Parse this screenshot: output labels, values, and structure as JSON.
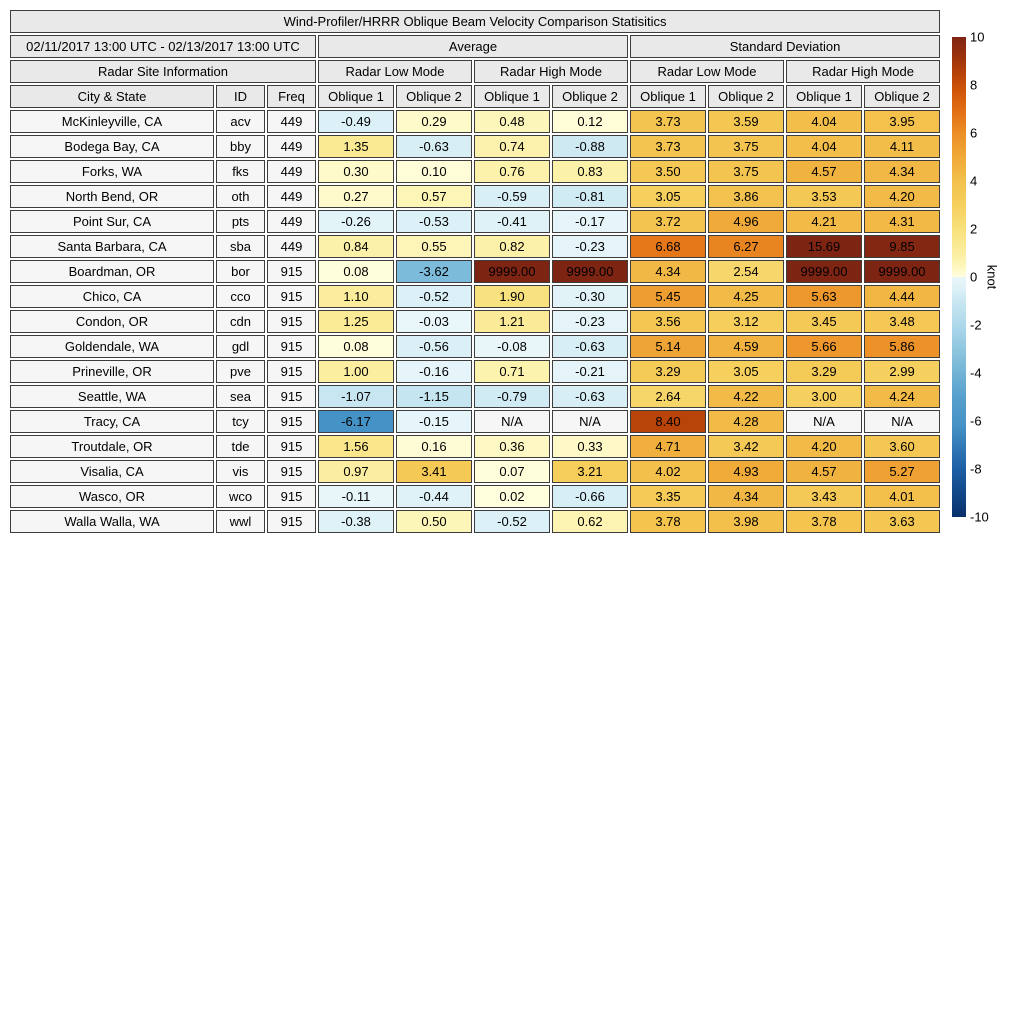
{
  "chart_data": {
    "type": "heatmap_table",
    "title": "Wind-Profiler/HRRR Oblique Beam Velocity Comparison Statisitics",
    "date_range": "02/11/2017 13:00 UTC - 02/13/2017 13:00 UTC",
    "site_info_label": "Radar Site Information",
    "column_groups": [
      "Average",
      "Standard Deviation"
    ],
    "sub_groups": [
      "Radar Low Mode",
      "Radar High Mode"
    ],
    "columns": [
      "City & State",
      "ID",
      "Freq"
    ],
    "value_columns": [
      "Oblique 1",
      "Oblique 2"
    ],
    "na_text": "N/A",
    "rows": [
      {
        "city": "McKinleyville, CA",
        "id": "acv",
        "freq": "449",
        "values": [
          "-0.49",
          "0.29",
          "0.48",
          "0.12",
          "3.73",
          "3.59",
          "4.04",
          "3.95"
        ]
      },
      {
        "city": "Bodega Bay, CA",
        "id": "bby",
        "freq": "449",
        "values": [
          "1.35",
          "-0.63",
          "0.74",
          "-0.88",
          "3.73",
          "3.75",
          "4.04",
          "4.11"
        ]
      },
      {
        "city": "Forks, WA",
        "id": "fks",
        "freq": "449",
        "values": [
          "0.30",
          "0.10",
          "0.76",
          "0.83",
          "3.50",
          "3.75",
          "4.57",
          "4.34"
        ]
      },
      {
        "city": "North Bend, OR",
        "id": "oth",
        "freq": "449",
        "values": [
          "0.27",
          "0.57",
          "-0.59",
          "-0.81",
          "3.05",
          "3.86",
          "3.53",
          "4.20"
        ]
      },
      {
        "city": "Point Sur, CA",
        "id": "pts",
        "freq": "449",
        "values": [
          "-0.26",
          "-0.53",
          "-0.41",
          "-0.17",
          "3.72",
          "4.96",
          "4.21",
          "4.31"
        ]
      },
      {
        "city": "Santa Barbara, CA",
        "id": "sba",
        "freq": "449",
        "values": [
          "0.84",
          "0.55",
          "0.82",
          "-0.23",
          "6.68",
          "6.27",
          "15.69",
          "9.85"
        ]
      },
      {
        "city": "Boardman, OR",
        "id": "bor",
        "freq": "915",
        "values": [
          "0.08",
          "-3.62",
          "9999.00",
          "9999.00",
          "4.34",
          "2.54",
          "9999.00",
          "9999.00"
        ]
      },
      {
        "city": "Chico, CA",
        "id": "cco",
        "freq": "915",
        "values": [
          "1.10",
          "-0.52",
          "1.90",
          "-0.30",
          "5.45",
          "4.25",
          "5.63",
          "4.44"
        ]
      },
      {
        "city": "Condon, OR",
        "id": "cdn",
        "freq": "915",
        "values": [
          "1.25",
          "-0.03",
          "1.21",
          "-0.23",
          "3.56",
          "3.12",
          "3.45",
          "3.48"
        ]
      },
      {
        "city": "Goldendale, WA",
        "id": "gdl",
        "freq": "915",
        "values": [
          "0.08",
          "-0.56",
          "-0.08",
          "-0.63",
          "5.14",
          "4.59",
          "5.66",
          "5.86"
        ]
      },
      {
        "city": "Prineville, OR",
        "id": "pve",
        "freq": "915",
        "values": [
          "1.00",
          "-0.16",
          "0.71",
          "-0.21",
          "3.29",
          "3.05",
          "3.29",
          "2.99"
        ]
      },
      {
        "city": "Seattle, WA",
        "id": "sea",
        "freq": "915",
        "values": [
          "-1.07",
          "-1.15",
          "-0.79",
          "-0.63",
          "2.64",
          "4.22",
          "3.00",
          "4.24"
        ]
      },
      {
        "city": "Tracy, CA",
        "id": "tcy",
        "freq": "915",
        "values": [
          "-6.17",
          "-0.15",
          "N/A",
          "N/A",
          "8.40",
          "4.28",
          "N/A",
          "N/A"
        ]
      },
      {
        "city": "Troutdale, OR",
        "id": "tde",
        "freq": "915",
        "values": [
          "1.56",
          "0.16",
          "0.36",
          "0.33",
          "4.71",
          "3.42",
          "4.20",
          "3.60"
        ]
      },
      {
        "city": "Visalia, CA",
        "id": "vis",
        "freq": "915",
        "values": [
          "0.97",
          "3.41",
          "0.07",
          "3.21",
          "4.02",
          "4.93",
          "4.57",
          "5.27"
        ]
      },
      {
        "city": "Wasco, OR",
        "id": "wco",
        "freq": "915",
        "values": [
          "-0.11",
          "-0.44",
          "0.02",
          "-0.66",
          "3.35",
          "4.34",
          "3.43",
          "4.01"
        ]
      },
      {
        "city": "Walla Walla, WA",
        "id": "wwl",
        "freq": "915",
        "values": [
          "-0.38",
          "0.50",
          "-0.52",
          "0.62",
          "3.78",
          "3.98",
          "3.78",
          "3.63"
        ]
      }
    ],
    "colorbar": {
      "label": "knot",
      "min": -10,
      "max": 10,
      "ticks": [
        10,
        8,
        6,
        4,
        2,
        0,
        -2,
        -4,
        -6,
        -8,
        -10
      ]
    }
  },
  "style": {
    "border_color": "#3d3d3d",
    "header_bg": "#e9e9e9",
    "label_bg": "#f6f6f6",
    "na_bg": "#f6f6f6",
    "positive_stops": [
      [
        0,
        "#FFFFE0"
      ],
      [
        0.05,
        "#FDF6B9"
      ],
      [
        0.1,
        "#FBEEA0"
      ],
      [
        0.15,
        "#FAE88E"
      ],
      [
        0.2,
        "#F8E07C"
      ],
      [
        0.3,
        "#F6D05E"
      ],
      [
        0.4,
        "#F3C04B"
      ],
      [
        0.5,
        "#F0A938"
      ],
      [
        0.6,
        "#EC8E26"
      ],
      [
        0.7,
        "#E16C13"
      ],
      [
        0.8,
        "#C94E08"
      ],
      [
        0.9,
        "#A2350A"
      ],
      [
        1,
        "#7E2413"
      ]
    ],
    "negative_stops": [
      [
        0,
        "#EAF7FA"
      ],
      [
        0.05,
        "#DCF1F7"
      ],
      [
        0.1,
        "#C9E7F1"
      ],
      [
        0.2,
        "#ADD9EB"
      ],
      [
        0.36,
        "#7DBBD9"
      ],
      [
        0.5,
        "#57A0CD"
      ],
      [
        0.62,
        "#4592C6"
      ],
      [
        0.8,
        "#1D5FA5"
      ],
      [
        1,
        "#08306B"
      ]
    ]
  }
}
